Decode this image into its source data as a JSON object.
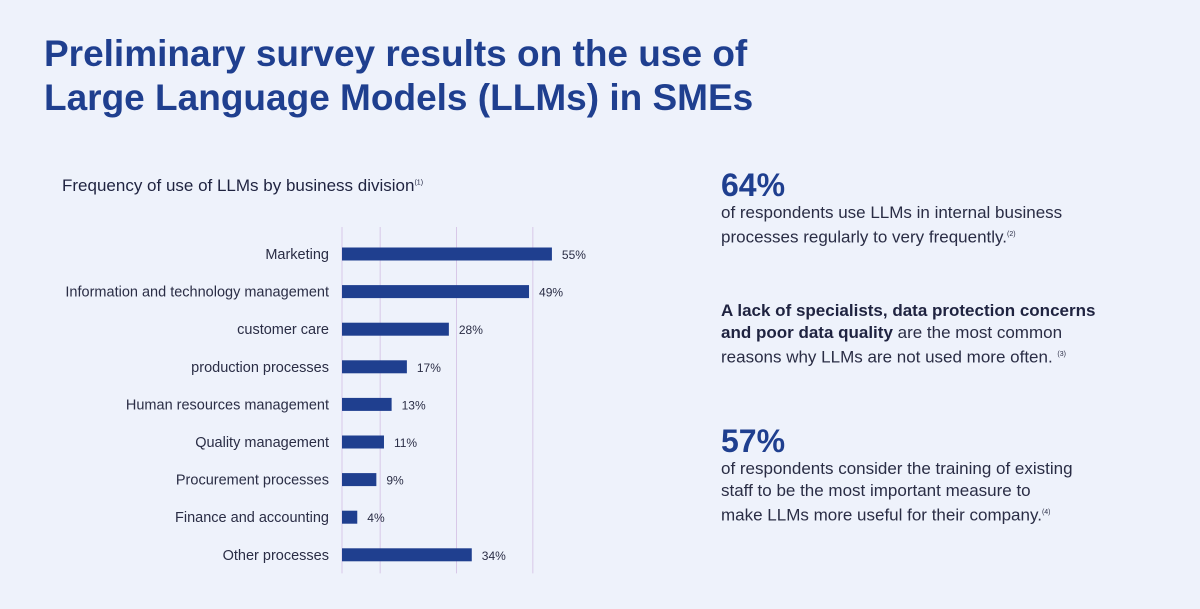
{
  "title_line1": "Preliminary survey results on the use of",
  "title_line2": "Large Language Models (LLMs) in SMEs",
  "colors": {
    "title": "#1f3f8f",
    "bar": "#1f3f8f",
    "grid": "#d8c8e8",
    "background": "#eef2fb"
  },
  "chart_data": {
    "type": "bar",
    "orientation": "horizontal",
    "title": "Frequency of use of LLMs by business division",
    "title_footnote": "(1)",
    "categories": [
      "Marketing",
      "Information and technology management",
      "customer care",
      "production processes",
      "Human resources management",
      "Quality management",
      "Procurement processes",
      "Finance and accounting",
      "Other processes"
    ],
    "values": [
      55,
      49,
      28,
      17,
      13,
      11,
      9,
      4,
      34
    ],
    "value_labels": [
      "55%",
      "49%",
      "28%",
      "17%",
      "13%",
      "11%",
      "9%",
      "4%",
      "34%"
    ],
    "xlim": [
      0,
      60
    ],
    "grid": true
  },
  "stats": {
    "s1": {
      "value": "64%",
      "line1": "of respondents use LLMs in internal business",
      "line2": "processes regularly to very frequently.",
      "note": "(2)"
    },
    "s2": {
      "bold1": "A lack of specialists, data protection concerns",
      "bold2": "and poor data quality",
      "rest": " are the most common",
      "line3": "reasons why LLMs are not used more often.",
      "note": "(3)"
    },
    "s3": {
      "value": "57%",
      "line1": "of respondents consider the training of existing",
      "line2": "staff to be the most important measure to",
      "line3": "make LLMs more useful for their company.",
      "note": "(4)"
    }
  }
}
